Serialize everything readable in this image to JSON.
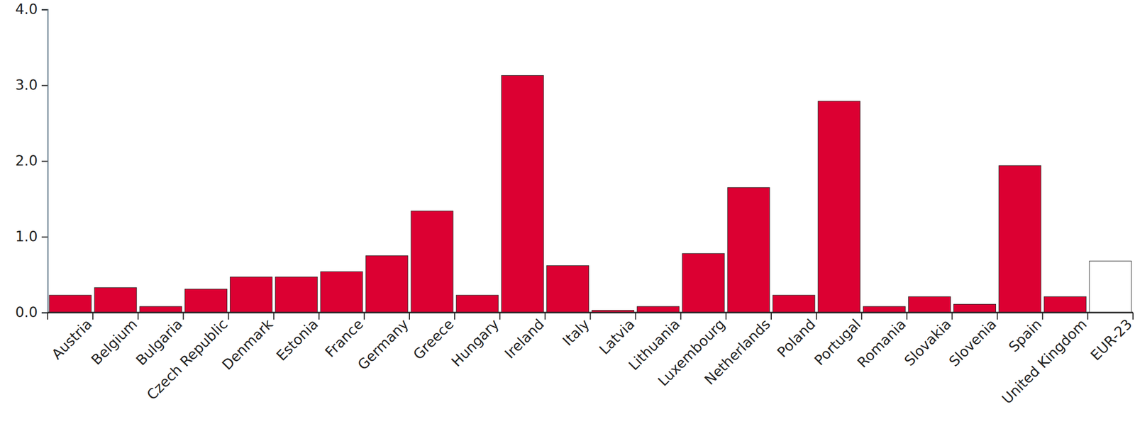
{
  "chart_data": {
    "type": "bar",
    "categories": [
      "Austria",
      "Belgium",
      "Bulgaria",
      "Czech Republic",
      "Denmark",
      "Estonia",
      "France",
      "Germany",
      "Greece",
      "Hungary",
      "Ireland",
      "Italy",
      "Latvia",
      "Lithuania",
      "Luxembourg",
      "Netherlands",
      "Poland",
      "Portugal",
      "Romania",
      "Slovakia",
      "Slovenia",
      "Spain",
      "United Kingdom",
      "EUR-23"
    ],
    "values": [
      0.23,
      0.33,
      0.08,
      0.31,
      0.47,
      0.47,
      0.54,
      0.75,
      1.34,
      0.23,
      3.13,
      0.62,
      0.03,
      0.08,
      0.78,
      1.65,
      0.23,
      2.79,
      0.08,
      0.21,
      0.11,
      1.94,
      0.21,
      0.68
    ],
    "colors": [
      "#dc0032",
      "#dc0032",
      "#dc0032",
      "#dc0032",
      "#dc0032",
      "#dc0032",
      "#dc0032",
      "#dc0032",
      "#dc0032",
      "#dc0032",
      "#dc0032",
      "#dc0032",
      "#dc0032",
      "#dc0032",
      "#dc0032",
      "#dc0032",
      "#dc0032",
      "#dc0032",
      "#dc0032",
      "#dc0032",
      "#dc0032",
      "#dc0032",
      "#dc0032",
      "#ffffff"
    ],
    "ylim": [
      0,
      4
    ],
    "yticks": [
      {
        "value": 0,
        "label": "0.0"
      },
      {
        "value": 1,
        "label": "1.0"
      },
      {
        "value": 2,
        "label": "2.0"
      },
      {
        "value": 3,
        "label": "3.0"
      },
      {
        "value": 4,
        "label": "4.0"
      }
    ],
    "grid": false
  }
}
